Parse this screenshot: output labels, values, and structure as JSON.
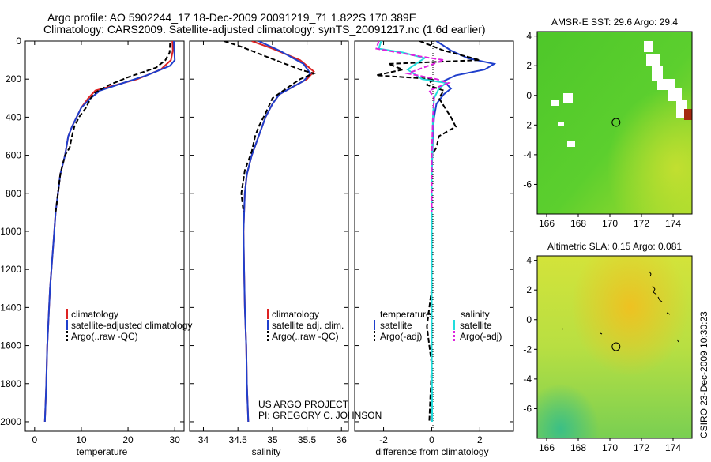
{
  "header": {
    "line1": "Argo profile: AO 5902244_17 18-Dec-2009 20091219_71 1.822S 170.389E",
    "line2": "Climatology: CARS2009. Satellite-adjusted climatology: synTS_20091217.nc (1.6d earlier)"
  },
  "credit": {
    "project": "US ARGO PROJECT",
    "pi": "PI: GREGORY C. JOHNSON",
    "side_label": "CSIRO 23-Dec-2009 10:30:23"
  },
  "colors": {
    "climatology": "#dd2222",
    "satellite": "#1f3fcc",
    "argo": "#000000",
    "sat_salinity": "#22dddd",
    "argo_salinity": "#dd22dd"
  },
  "chart_data": [
    {
      "id": "temperature",
      "type": "line",
      "xlabel": "temperature",
      "xlim": [
        -2,
        32
      ],
      "ylim": [
        2050,
        0
      ],
      "xticks": [
        0,
        10,
        20,
        30
      ],
      "yticks": [
        0,
        200,
        400,
        600,
        800,
        1000,
        1200,
        1400,
        1600,
        1800,
        2000
      ],
      "legend": [
        "climatology",
        "satellite-adjusted climatology",
        "Argo(..raw -QC)"
      ],
      "series": [
        {
          "name": "climatology",
          "color": "#dd2222",
          "dash": "",
          "points": [
            [
              29.5,
              0
            ],
            [
              29.6,
              50
            ],
            [
              29.2,
              100
            ],
            [
              27,
              150
            ],
            [
              22,
              200
            ],
            [
              16,
              240
            ],
            [
              13,
              260
            ],
            [
              11.5,
              300
            ],
            [
              10,
              350
            ],
            [
              9,
              400
            ],
            [
              8,
              450
            ],
            [
              7.2,
              500
            ],
            [
              6.5,
              600
            ],
            [
              5.5,
              700
            ],
            [
              5,
              800
            ],
            [
              4.5,
              900
            ],
            [
              4.2,
              1000
            ],
            [
              3.9,
              1100
            ],
            [
              3.6,
              1200
            ],
            [
              3.3,
              1300
            ],
            [
              3.1,
              1400
            ],
            [
              2.9,
              1500
            ],
            [
              2.7,
              1600
            ],
            [
              2.5,
              1800
            ],
            [
              2.2,
              2000
            ]
          ]
        },
        {
          "name": "satellite-adjusted climatology",
          "color": "#1f3fcc",
          "dash": "",
          "points": [
            [
              29.8,
              0
            ],
            [
              29.9,
              50
            ],
            [
              30,
              100
            ],
            [
              29,
              130
            ],
            [
              24,
              180
            ],
            [
              19,
              220
            ],
            [
              14,
              260
            ],
            [
              12,
              300
            ],
            [
              10,
              350
            ],
            [
              9,
              400
            ],
            [
              8,
              450
            ],
            [
              7.2,
              500
            ],
            [
              6.5,
              600
            ],
            [
              5.5,
              700
            ],
            [
              5,
              800
            ],
            [
              4.5,
              900
            ],
            [
              4.2,
              1000
            ],
            [
              3.9,
              1100
            ],
            [
              3.6,
              1200
            ],
            [
              3.3,
              1300
            ],
            [
              3.1,
              1400
            ],
            [
              2.9,
              1500
            ],
            [
              2.7,
              1600
            ],
            [
              2.5,
              1800
            ],
            [
              2.2,
              2000
            ]
          ]
        },
        {
          "name": "Argo(..raw -QC)",
          "color": "#000000",
          "dash": "6,3",
          "points": [
            [
              29,
              10
            ],
            [
              28.9,
              60
            ],
            [
              28,
              100
            ],
            [
              26,
              140
            ],
            [
              20,
              190
            ],
            [
              16,
              230
            ],
            [
              13,
              270
            ],
            [
              12,
              300
            ],
            [
              11,
              350
            ],
            [
              9.5,
              400
            ],
            [
              8.5,
              450
            ],
            [
              8,
              500
            ],
            [
              7.5,
              560
            ],
            [
              6.5,
              600
            ],
            [
              5.5,
              700
            ],
            [
              5,
              800
            ],
            [
              4.5,
              900
            ]
          ]
        }
      ]
    },
    {
      "id": "salinity",
      "type": "line",
      "xlabel": "salinity",
      "xlim": [
        33.8,
        36.1
      ],
      "ylim": [
        2050,
        0
      ],
      "xticks": [
        34,
        34.5,
        35,
        35.5,
        36
      ],
      "yticks": [
        0,
        200,
        400,
        600,
        800,
        1000,
        1200,
        1400,
        1600,
        1800,
        2000
      ],
      "legend": [
        "climatology",
        "satellite adj. clim.",
        "Argo(..raw -QC)"
      ],
      "series": [
        {
          "name": "climatology",
          "color": "#dd2222",
          "dash": "",
          "points": [
            [
              34.7,
              0
            ],
            [
              35,
              40
            ],
            [
              35.4,
              100
            ],
            [
              35.6,
              160
            ],
            [
              35.5,
              200
            ],
            [
              35.3,
              240
            ],
            [
              35.1,
              280
            ],
            [
              35,
              330
            ],
            [
              34.9,
              400
            ],
            [
              34.8,
              500
            ],
            [
              34.7,
              600
            ],
            [
              34.63,
              700
            ],
            [
              34.6,
              800
            ],
            [
              34.58,
              1000
            ],
            [
              34.59,
              1200
            ],
            [
              34.6,
              1400
            ],
            [
              34.62,
              1600
            ],
            [
              34.63,
              1800
            ],
            [
              34.65,
              2000
            ]
          ]
        },
        {
          "name": "satellite adj. clim.",
          "color": "#1f3fcc",
          "dash": "",
          "points": [
            [
              34.8,
              0
            ],
            [
              35.1,
              50
            ],
            [
              35.45,
              120
            ],
            [
              35.55,
              170
            ],
            [
              35.45,
              210
            ],
            [
              35.3,
              240
            ],
            [
              35.1,
              280
            ],
            [
              35,
              330
            ],
            [
              34.9,
              400
            ],
            [
              34.8,
              500
            ],
            [
              34.7,
              600
            ],
            [
              34.63,
              700
            ],
            [
              34.6,
              800
            ],
            [
              34.58,
              1000
            ],
            [
              34.59,
              1200
            ],
            [
              34.6,
              1400
            ],
            [
              34.62,
              1600
            ],
            [
              34.63,
              1800
            ],
            [
              34.65,
              2000
            ]
          ]
        },
        {
          "name": "Argo(..raw -QC)",
          "color": "#000000",
          "dash": "6,3",
          "points": [
            [
              34.3,
              0
            ],
            [
              34.55,
              30
            ],
            [
              34.9,
              80
            ],
            [
              35.4,
              150
            ],
            [
              35.6,
              170
            ],
            [
              35.4,
              200
            ],
            [
              35.2,
              250
            ],
            [
              35,
              300
            ],
            [
              34.9,
              380
            ],
            [
              34.8,
              450
            ],
            [
              34.75,
              500
            ],
            [
              34.7,
              580
            ],
            [
              34.6,
              680
            ],
            [
              34.55,
              800
            ],
            [
              34.58,
              900
            ]
          ]
        }
      ]
    },
    {
      "id": "difference",
      "type": "line",
      "xlabel": "difference from climatology",
      "xlim": [
        -3.2,
        3.4
      ],
      "ylim": [
        2050,
        0
      ],
      "xticks": [
        -2,
        0,
        2
      ],
      "yticks": [
        0,
        200,
        400,
        600,
        800,
        1000,
        1200,
        1400,
        1600,
        1800,
        2000
      ],
      "legend_groups": [
        {
          "title": "temperature",
          "items": [
            "satellite",
            "Argo(-adj)"
          ]
        },
        {
          "title": "salinity",
          "items": [
            "satellite",
            "Argo(-adj)"
          ]
        }
      ],
      "series": [
        {
          "name": "temperature satellite",
          "color": "#1f3fcc",
          "dash": "",
          "points": [
            [
              0.2,
              0
            ],
            [
              0.8,
              50
            ],
            [
              1.5,
              90
            ],
            [
              2.6,
              120
            ],
            [
              2.2,
              150
            ],
            [
              1,
              180
            ],
            [
              0.5,
              210
            ],
            [
              0.8,
              250
            ],
            [
              0.5,
              280
            ],
            [
              0.2,
              330
            ],
            [
              0.1,
              400
            ],
            [
              0.05,
              500
            ],
            [
              0,
              700
            ],
            [
              0,
              1000
            ],
            [
              0,
              1500
            ],
            [
              0,
              2000
            ]
          ]
        },
        {
          "name": "temperature Argo(-adj)",
          "color": "#000000",
          "dash": "6,3",
          "points": [
            [
              -0.5,
              0
            ],
            [
              0.5,
              50
            ],
            [
              2,
              100
            ],
            [
              -1.8,
              120
            ],
            [
              -1.2,
              150
            ],
            [
              -2.3,
              180
            ],
            [
              0.1,
              200
            ],
            [
              -0.2,
              230
            ],
            [
              0.5,
              260
            ],
            [
              0.3,
              300
            ],
            [
              0.8,
              400
            ],
            [
              1,
              450
            ],
            [
              0.3,
              500
            ],
            [
              0.2,
              560
            ],
            [
              0,
              600
            ],
            [
              0,
              900
            ],
            [
              0,
              1300
            ],
            [
              -0.2,
              1500
            ],
            [
              0,
              1700
            ],
            [
              -0.1,
              2000
            ]
          ]
        },
        {
          "name": "salinity satellite",
          "color": "#22dddd",
          "dash": "",
          "points": [
            [
              -2.1,
              0
            ],
            [
              -2.2,
              40
            ],
            [
              -1.2,
              60
            ],
            [
              -0.3,
              90
            ],
            [
              -1,
              150
            ],
            [
              -0.4,
              200
            ],
            [
              0.6,
              220
            ],
            [
              0.3,
              250
            ],
            [
              0.1,
              300
            ],
            [
              0.05,
              400
            ],
            [
              0,
              700
            ],
            [
              0,
              1200
            ],
            [
              0,
              1600
            ],
            [
              0.02,
              2000
            ]
          ]
        },
        {
          "name": "salinity Argo(-adj)",
          "color": "#dd22dd",
          "dash": "6,3",
          "points": [
            [
              -2.2,
              0
            ],
            [
              -2.3,
              40
            ],
            [
              -0.5,
              80
            ],
            [
              0.5,
              100
            ],
            [
              -1,
              170
            ],
            [
              0.2,
              200
            ],
            [
              0.7,
              220
            ],
            [
              -0.1,
              260
            ],
            [
              0.1,
              300
            ],
            [
              0.05,
              400
            ],
            [
              0,
              600
            ],
            [
              0,
              900
            ]
          ]
        }
      ]
    },
    {
      "id": "sst-map",
      "type": "heatmap",
      "title": "AMSR-E SST: 29.6 Argo: 29.4",
      "xlim": [
        165.4,
        175.2
      ],
      "ylim": [
        -8,
        4.3
      ],
      "xticks": [
        166,
        168,
        170,
        172,
        174
      ],
      "yticks": [
        -6,
        -4,
        -2,
        0,
        2,
        4
      ],
      "float_position": {
        "lon": 170.389,
        "lat": -1.822
      }
    },
    {
      "id": "sla-map",
      "type": "heatmap",
      "title": "Altimetric SLA: 0.15 Argo: 0.081",
      "xlim": [
        165.4,
        175.2
      ],
      "ylim": [
        -8,
        4.3
      ],
      "xticks": [
        166,
        168,
        170,
        172,
        174
      ],
      "yticks": [
        -6,
        -4,
        -2,
        0,
        2,
        4
      ],
      "float_position": {
        "lon": 170.389,
        "lat": -1.822
      }
    }
  ]
}
